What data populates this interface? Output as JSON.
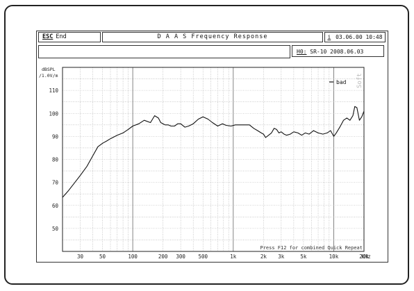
{
  "header": {
    "esc_key": "ESC",
    "esc_label": "End",
    "title": "D A A S  Frequency Response",
    "date_icon": "i",
    "date": "03.06.00 10:48",
    "note_key": "H0:",
    "note": "SR-10 2008.06.03"
  },
  "footer_text": "Press F12 for combined Quick Repeat",
  "side_label": "Soft",
  "chart_data": {
    "type": "line",
    "title": "",
    "xlabel": "",
    "ylabel": "dBSPL",
    "y_unit": "/1.0V/m",
    "xscale": "log",
    "x_unit": "kHz",
    "xlim": [
      20,
      20000
    ],
    "ylim": [
      40,
      120
    ],
    "grid": true,
    "legend": "top-right",
    "x_tick_labels": [
      "30",
      "50",
      "100",
      "200",
      "300",
      "500",
      "1k",
      "2k",
      "3k",
      "5k",
      "10k",
      "20k"
    ],
    "x_tick_values": [
      30,
      50,
      100,
      200,
      300,
      500,
      1000,
      2000,
      3000,
      5000,
      10000,
      20000
    ],
    "y_tick_labels": [
      "110",
      "100",
      "90",
      "80",
      "70",
      "60",
      "50"
    ],
    "y_tick_values": [
      110,
      100,
      90,
      80,
      70,
      60,
      50
    ],
    "series": [
      {
        "name": "bad",
        "color": "#111111",
        "x": [
          20,
          23,
          26,
          30,
          35,
          40,
          45,
          50,
          55,
          60,
          70,
          80,
          90,
          100,
          115,
          130,
          150,
          165,
          180,
          190,
          200,
          210,
          225,
          240,
          260,
          280,
          300,
          330,
          360,
          400,
          450,
          500,
          560,
          620,
          700,
          780,
          850,
          950,
          1050,
          1150,
          1300,
          1450,
          1600,
          1750,
          1900,
          2000,
          2100,
          2250,
          2400,
          2550,
          2700,
          2850,
          3000,
          3200,
          3400,
          3700,
          4000,
          4400,
          4800,
          5200,
          5700,
          6300,
          7000,
          7800,
          8600,
          9300,
          10000,
          10600,
          11500,
          12500,
          13500,
          14500,
          15500,
          16200,
          17000,
          18000,
          19000,
          20000
        ],
        "y": [
          63.5,
          66.5,
          69.5,
          73.0,
          77.0,
          81.5,
          85.5,
          87.0,
          88.0,
          89.0,
          90.5,
          91.5,
          93.0,
          94.5,
          95.5,
          97.0,
          96.0,
          99.0,
          98.0,
          96.0,
          95.5,
          95.0,
          95.0,
          94.5,
          94.5,
          95.5,
          95.5,
          94.0,
          94.5,
          95.5,
          97.5,
          98.5,
          97.5,
          96.0,
          94.5,
          95.5,
          94.8,
          94.5,
          95.0,
          95.0,
          95.0,
          95.0,
          93.5,
          92.5,
          91.5,
          91.0,
          89.5,
          90.5,
          91.5,
          93.5,
          93.0,
          91.5,
          92.0,
          91.0,
          90.5,
          91.0,
          92.0,
          91.5,
          90.5,
          91.5,
          91.0,
          92.5,
          91.5,
          91.0,
          91.5,
          92.5,
          90.0,
          91.5,
          94.0,
          97.0,
          98.0,
          97.0,
          99.0,
          103.0,
          102.5,
          97.0,
          98.5,
          101.0
        ]
      }
    ]
  }
}
